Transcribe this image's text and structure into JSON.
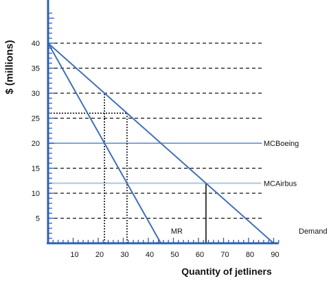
{
  "chart_data": {
    "type": "line",
    "title": "",
    "xlabel": "Quantity of jetliners",
    "ylabel": "$ (millions)",
    "xlim": [
      0,
      90
    ],
    "ylim": [
      0,
      40
    ],
    "x_ticks": [
      10,
      20,
      30,
      40,
      50,
      60,
      70,
      80,
      90
    ],
    "y_ticks": [
      5,
      10,
      15,
      20,
      25,
      30,
      35,
      40
    ],
    "grid": "dashed horizontal lines at y = 5..40",
    "series": [
      {
        "name": "Demand",
        "color": "#3f6fb8",
        "points": [
          [
            0,
            40
          ],
          [
            90,
            0
          ]
        ]
      },
      {
        "name": "MR",
        "color": "#3f6fb8",
        "points": [
          [
            0,
            40
          ],
          [
            45,
            0
          ]
        ]
      },
      {
        "name": "MCBoeing",
        "color": "#7da4d6",
        "points": [
          [
            0,
            20
          ],
          [
            85,
            20
          ]
        ]
      },
      {
        "name": "MCAirbus",
        "color": "#a9c6e8",
        "points": [
          [
            0,
            12
          ],
          [
            85,
            12
          ]
        ]
      }
    ],
    "guide_lines": [
      {
        "from": [
          22.5,
          0
        ],
        "to": [
          22.5,
          30
        ],
        "style": "dotted"
      },
      {
        "from": [
          31.5,
          0
        ],
        "to": [
          31.5,
          26
        ],
        "style": "dotted"
      },
      {
        "from": [
          0,
          26
        ],
        "to": [
          31.5,
          26
        ],
        "style": "dotted"
      },
      {
        "from": [
          63,
          0
        ],
        "to": [
          63,
          12
        ],
        "style": "solid"
      }
    ],
    "annotations": [
      {
        "text": "MR",
        "x": 49,
        "y": 2.5
      },
      {
        "text": "Demand",
        "x": 100,
        "y": 2.5
      },
      {
        "text": "MCBoeing",
        "x": 86,
        "y": 20
      },
      {
        "text": "MCAirbus",
        "x": 86,
        "y": 12
      }
    ]
  }
}
